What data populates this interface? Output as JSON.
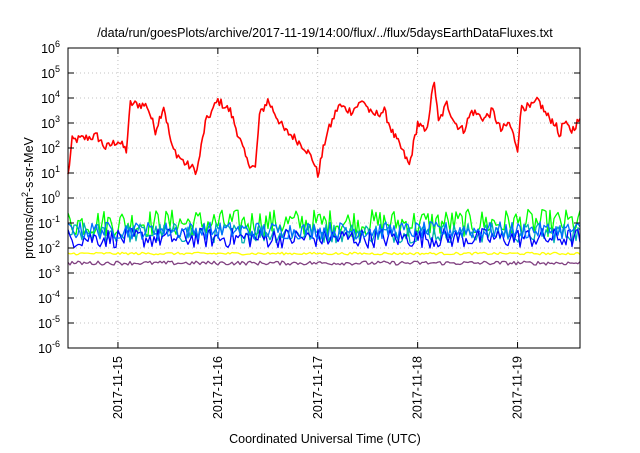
{
  "chart_data": {
    "type": "line",
    "title": "/data/run/goesPlots/archive/2017-11-19/14:00/flux/../flux/5daysEarthDataFluxes.txt",
    "xlabel": "Coordinated Universal Time (UTC)",
    "ylabel_parts": {
      "base": "protons/cm",
      "exp": "2",
      "rest": "-s-sr-MeV"
    },
    "y_scale": "log",
    "ylim": [
      1e-06,
      1000000.0
    ],
    "y_ticks": [
      {
        "value": 1e-06,
        "base": "10",
        "exp": "-6"
      },
      {
        "value": 1e-05,
        "base": "10",
        "exp": "-5"
      },
      {
        "value": 0.0001,
        "base": "10",
        "exp": "-4"
      },
      {
        "value": 0.001,
        "base": "10",
        "exp": "-3"
      },
      {
        "value": 0.01,
        "base": "10",
        "exp": "-2"
      },
      {
        "value": 0.1,
        "base": "10",
        "exp": "-1"
      },
      {
        "value": 1,
        "base": "10",
        "exp": "0"
      },
      {
        "value": 10,
        "base": "10",
        "exp": "1"
      },
      {
        "value": 100,
        "base": "10",
        "exp": "2"
      },
      {
        "value": 1000,
        "base": "10",
        "exp": "3"
      },
      {
        "value": 10000,
        "base": "10",
        "exp": "4"
      },
      {
        "value": 100000,
        "base": "10",
        "exp": "5"
      },
      {
        "value": 1000000,
        "base": "10",
        "exp": "6"
      }
    ],
    "xlim": [
      "2017-11-14T12:00",
      "2017-11-19T15:00"
    ],
    "x_ticks": [
      {
        "value": "2017-11-15T00:00",
        "label": "2017-11-15"
      },
      {
        "value": "2017-11-16T00:00",
        "label": "2017-11-16"
      },
      {
        "value": "2017-11-17T00:00",
        "label": "2017-11-17"
      },
      {
        "value": "2017-11-18T00:00",
        "label": "2017-11-18"
      },
      {
        "value": "2017-11-19T00:00",
        "label": "2017-11-19"
      }
    ],
    "grid": true,
    "series": [
      {
        "color": "#ff0000",
        "points": [
          [
            "2017-11-14T12:00",
            8
          ],
          [
            "2017-11-14T13:00",
            200
          ],
          [
            "2017-11-14T16:00",
            250
          ],
          [
            "2017-11-14T19:00",
            300
          ],
          [
            "2017-11-14T21:00",
            100
          ],
          [
            "2017-11-15T00:00",
            200
          ],
          [
            "2017-11-15T02:00",
            80
          ],
          [
            "2017-11-15T03:00",
            6000
          ],
          [
            "2017-11-15T07:00",
            5000
          ],
          [
            "2017-11-15T09:00",
            500
          ],
          [
            "2017-11-15T11:00",
            5000
          ],
          [
            "2017-11-15T13:00",
            100
          ],
          [
            "2017-11-15T16:00",
            25
          ],
          [
            "2017-11-15T19:00",
            12
          ],
          [
            "2017-11-15T21:00",
            1000
          ],
          [
            "2017-11-16T00:00",
            8000
          ],
          [
            "2017-11-16T03:00",
            3000
          ],
          [
            "2017-11-16T05:00",
            300
          ],
          [
            "2017-11-16T07:00",
            30
          ],
          [
            "2017-11-16T09:00",
            15
          ],
          [
            "2017-11-16T10:00",
            2000
          ],
          [
            "2017-11-16T12:00",
            8000
          ],
          [
            "2017-11-16T14:00",
            2000
          ],
          [
            "2017-11-16T16:00",
            500
          ],
          [
            "2017-11-16T18:00",
            300
          ],
          [
            "2017-11-16T21:00",
            100
          ],
          [
            "2017-11-16T23:00",
            30
          ],
          [
            "2017-11-17T00:00",
            8
          ],
          [
            "2017-11-17T02:00",
            300
          ],
          [
            "2017-11-17T05:00",
            5000
          ],
          [
            "2017-11-17T08:00",
            3000
          ],
          [
            "2017-11-17T11:00",
            8000
          ],
          [
            "2017-11-17T13:00",
            2000
          ],
          [
            "2017-11-17T16:00",
            3000
          ],
          [
            "2017-11-17T18:00",
            400
          ],
          [
            "2017-11-17T20:00",
            100
          ],
          [
            "2017-11-17T22:00",
            20
          ],
          [
            "2017-11-18T00:00",
            1000
          ],
          [
            "2017-11-18T02:00",
            400
          ],
          [
            "2017-11-18T04:00",
            50000
          ],
          [
            "2017-11-18T05:00",
            1000
          ],
          [
            "2017-11-18T07:00",
            6000
          ],
          [
            "2017-11-18T09:00",
            1000
          ],
          [
            "2017-11-18T11:00",
            500
          ],
          [
            "2017-11-18T13:00",
            3000
          ],
          [
            "2017-11-18T16:00",
            1500
          ],
          [
            "2017-11-18T18:00",
            3000
          ],
          [
            "2017-11-18T20:00",
            500
          ],
          [
            "2017-11-18T22:00",
            1000
          ],
          [
            "2017-11-19T00:00",
            100
          ],
          [
            "2017-11-19T01:00",
            5000
          ],
          [
            "2017-11-19T03:00",
            4000
          ],
          [
            "2017-11-19T05:00",
            8000
          ],
          [
            "2017-11-19T07:00",
            2000
          ],
          [
            "2017-11-19T09:00",
            1000
          ],
          [
            "2017-11-19T10:00",
            300
          ],
          [
            "2017-11-19T11:00",
            1000
          ],
          [
            "2017-11-19T13:00",
            500
          ],
          [
            "2017-11-19T15:00",
            1500
          ]
        ]
      },
      {
        "color": "#00ff00",
        "level": 0.1,
        "amp": 0.55
      },
      {
        "color": "#00b0b0",
        "level": 0.04,
        "amp": 0.4
      },
      {
        "color": "#0000ff",
        "level": 0.025,
        "amp": 0.4
      },
      {
        "color": "#0070ff",
        "level": 0.05,
        "amp": 0.35
      },
      {
        "color": "#ffff00",
        "level": 0.006,
        "amp": 0.05
      },
      {
        "color": "#804080",
        "level": 0.0025,
        "amp": 0.08
      }
    ]
  }
}
